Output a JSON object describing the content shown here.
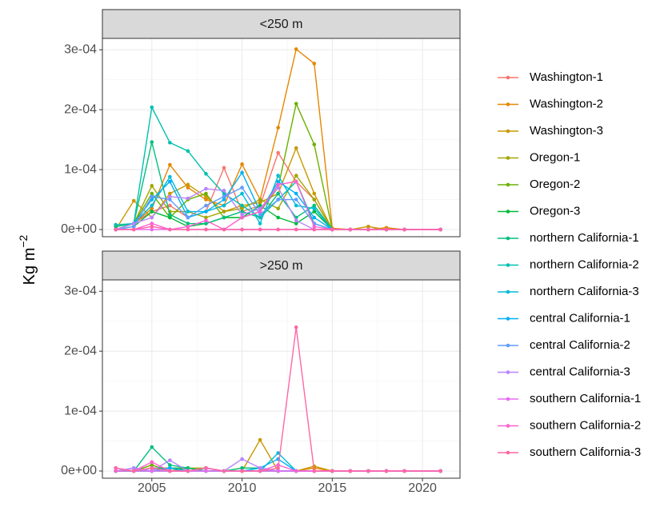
{
  "chart_data": {
    "type": "line",
    "y_label": "Kg m",
    "y_label_sup": "−2",
    "x": [
      2003,
      2004,
      2005,
      2006,
      2007,
      2008,
      2009,
      2010,
      2011,
      2012,
      2013,
      2014,
      2015,
      2016,
      2017,
      2018,
      2019,
      2021
    ],
    "xlim": [
      2002.26,
      2022.08
    ],
    "xticks": [
      2005,
      2010,
      2015,
      2020
    ],
    "ylim": [
      -1.2e-05,
      0.000319
    ],
    "yticks": [
      {
        "value": 0,
        "label": "0e+00"
      },
      {
        "value": 0.0001,
        "label": "1e-04"
      },
      {
        "value": 0.0002,
        "label": "2e-04"
      },
      {
        "value": 0.0003,
        "label": "3e-04"
      }
    ],
    "grid": true,
    "series": [
      {
        "name": "Washington-1",
        "color": "#F8766D"
      },
      {
        "name": "Washington-2",
        "color": "#E58700"
      },
      {
        "name": "Washington-3",
        "color": "#C99800"
      },
      {
        "name": "Oregon-1",
        "color": "#A3A500"
      },
      {
        "name": "Oregon-2",
        "color": "#6BB100"
      },
      {
        "name": "Oregon-3",
        "color": "#00BA38"
      },
      {
        "name": "northern California-1",
        "color": "#00BF7D"
      },
      {
        "name": "northern California-2",
        "color": "#00C0AF"
      },
      {
        "name": "northern California-3",
        "color": "#00BCD8"
      },
      {
        "name": "central California-1",
        "color": "#00B0F6"
      },
      {
        "name": "central California-2",
        "color": "#619CFF"
      },
      {
        "name": "central California-3",
        "color": "#B983FF"
      },
      {
        "name": "southern California-1",
        "color": "#E76BF3"
      },
      {
        "name": "southern California-2",
        "color": "#FD61D1"
      },
      {
        "name": "southern California-3",
        "color": "#FF67A4"
      }
    ],
    "panels": [
      {
        "title": "<250 m",
        "values": [
          [
            0,
            1e-05,
            3e-05,
            4e-05,
            2e-05,
            3e-05,
            0.000103,
            3e-05,
            4e-05,
            0.000128,
            8e-05,
            5e-05,
            0,
            0,
            0,
            2e-06,
            0,
            0
          ],
          [
            5e-06,
            1e-05,
            3.5e-05,
            0.000108,
            7e-05,
            5e-05,
            4e-05,
            0.000109,
            5e-05,
            0.00017,
            0.000301,
            0.000277,
            2e-06,
            0,
            0,
            3e-06,
            0,
            0
          ],
          [
            0,
            4.8e-05,
            2e-05,
            6e-05,
            7.5e-05,
            5.5e-05,
            3e-05,
            4e-05,
            4.5e-05,
            6e-05,
            0.000136,
            6e-05,
            0,
            0,
            5e-06,
            0,
            0,
            0
          ],
          [
            0,
            1e-05,
            7.3e-05,
            3e-05,
            3e-05,
            2e-05,
            3e-05,
            3.5e-05,
            5e-05,
            3.5e-05,
            9e-05,
            5e-05,
            0,
            0,
            0,
            0,
            0,
            0
          ],
          [
            0,
            1e-05,
            6e-05,
            2e-05,
            5e-05,
            6e-05,
            2e-05,
            2e-05,
            3e-05,
            7e-05,
            0.00021,
            0.000142,
            0,
            0,
            0,
            0,
            0,
            0
          ],
          [
            0,
            5e-06,
            3e-05,
            2e-05,
            5e-06,
            1e-05,
            2e-05,
            2e-05,
            4e-05,
            2e-05,
            1e-05,
            3e-05,
            0,
            0,
            0,
            0,
            0,
            0
          ],
          [
            5e-06,
            1e-05,
            0.000146,
            2.5e-05,
            1e-05,
            1e-05,
            2e-05,
            3e-05,
            2e-05,
            6e-05,
            2e-05,
            4e-05,
            0,
            0,
            0,
            0,
            0,
            0
          ],
          [
            8e-06,
            1e-05,
            0.000204,
            0.000145,
            0.000131,
            9.3e-05,
            6e-05,
            4e-05,
            2e-05,
            5e-05,
            8e-05,
            1e-05,
            0,
            0,
            0,
            0,
            0,
            0
          ],
          [
            0,
            1e-05,
            4e-05,
            8.8e-05,
            3e-05,
            3e-05,
            4e-05,
            6e-05,
            1e-05,
            9e-05,
            4e-05,
            3.5e-05,
            0,
            0,
            0,
            0,
            0,
            0
          ],
          [
            0,
            1e-05,
            5e-05,
            8e-05,
            2e-05,
            3e-05,
            5e-05,
            9.5e-05,
            3e-05,
            8e-05,
            6e-05,
            2e-05,
            0,
            0,
            0,
            0,
            0,
            0
          ],
          [
            0,
            5e-06,
            5.5e-05,
            5e-05,
            2e-05,
            4e-05,
            5.5e-05,
            7e-05,
            2.5e-05,
            5e-05,
            5e-05,
            1e-05,
            0,
            0,
            0,
            0,
            0,
            0
          ],
          [
            0,
            1e-05,
            2e-05,
            5.5e-05,
            5.2e-05,
            6.8e-05,
            6.5e-05,
            2.5e-05,
            3.5e-05,
            7e-05,
            1.5e-05,
            0,
            0,
            0,
            0,
            0,
            0,
            0
          ],
          [
            0,
            0,
            0,
            0,
            0,
            0,
            0,
            0,
            0,
            0,
            0,
            0,
            0,
            0,
            0,
            0,
            0,
            0
          ],
          [
            0,
            0,
            1e-05,
            0,
            5e-06,
            1.5e-05,
            0,
            2e-05,
            3e-05,
            7.5e-05,
            8e-05,
            5e-06,
            0,
            0,
            0,
            0,
            0,
            0
          ],
          [
            0,
            0,
            5e-06,
            0,
            0,
            0,
            0,
            0,
            0,
            0,
            0,
            0,
            0,
            0,
            0,
            0,
            0,
            0
          ]
        ]
      },
      {
        "title": ">250 m",
        "values": [
          [
            0,
            0,
            1e-05,
            0,
            0,
            5e-06,
            0,
            0,
            0,
            0,
            0,
            0,
            0,
            0,
            0,
            0,
            0,
            0
          ],
          [
            5e-06,
            0,
            0,
            0,
            0,
            0,
            0,
            0,
            0,
            0,
            0,
            5e-06,
            0,
            0,
            0,
            0,
            0,
            0
          ],
          [
            0,
            0,
            0,
            0,
            0,
            0,
            0,
            0,
            5.2e-05,
            0,
            0,
            8e-06,
            0,
            0,
            0,
            0,
            0,
            0
          ],
          [
            0,
            0,
            5e-06,
            0,
            5e-06,
            5e-06,
            0,
            5e-06,
            5e-06,
            0,
            0,
            0,
            0,
            0,
            0,
            0,
            0,
            0
          ],
          [
            0,
            0,
            1e-05,
            0,
            5e-06,
            0,
            0,
            0,
            0,
            0,
            0,
            0,
            0,
            0,
            0,
            0,
            0,
            0
          ],
          [
            0,
            0,
            5e-06,
            5e-06,
            5e-06,
            0,
            0,
            0,
            0,
            0,
            0,
            0,
            0,
            0,
            0,
            0,
            0,
            0
          ],
          [
            0,
            0,
            4e-05,
            1e-05,
            5e-06,
            0,
            0,
            5e-06,
            5e-06,
            0,
            0,
            0,
            0,
            0,
            0,
            0,
            0,
            0
          ],
          [
            0,
            0,
            0,
            5e-06,
            0,
            5e-06,
            0,
            0,
            5e-06,
            0,
            0,
            0,
            0,
            0,
            0,
            0,
            0,
            0
          ],
          [
            0,
            0,
            0,
            0,
            0,
            5e-06,
            0,
            0,
            0,
            3e-05,
            0,
            0,
            0,
            0,
            0,
            0,
            0,
            0
          ],
          [
            0,
            0,
            0,
            5e-06,
            0,
            0,
            0,
            0,
            5e-06,
            2e-05,
            0,
            0,
            0,
            0,
            0,
            0,
            0,
            0
          ],
          [
            0,
            5e-06,
            0,
            0,
            0,
            5e-06,
            0,
            0,
            0,
            0,
            0,
            0,
            0,
            0,
            0,
            0,
            0,
            0
          ],
          [
            0,
            5e-06,
            0,
            1.8e-05,
            0,
            0,
            0,
            2e-05,
            5e-06,
            0,
            0,
            0,
            0,
            0,
            0,
            0,
            0,
            0
          ],
          [
            5e-06,
            0,
            0,
            0,
            0,
            0,
            0,
            0,
            0,
            0,
            0,
            0,
            0,
            0,
            0,
            0,
            0,
            0
          ],
          [
            0,
            0,
            1.5e-05,
            0,
            0,
            5e-06,
            0,
            0,
            0,
            1e-05,
            0,
            0,
            0,
            0,
            0,
            0,
            0,
            0
          ],
          [
            5e-06,
            0,
            5e-06,
            0,
            0,
            5e-06,
            0,
            0,
            0,
            5e-06,
            0.00024,
            0,
            0,
            0,
            0,
            0,
            0,
            0
          ]
        ]
      }
    ]
  }
}
